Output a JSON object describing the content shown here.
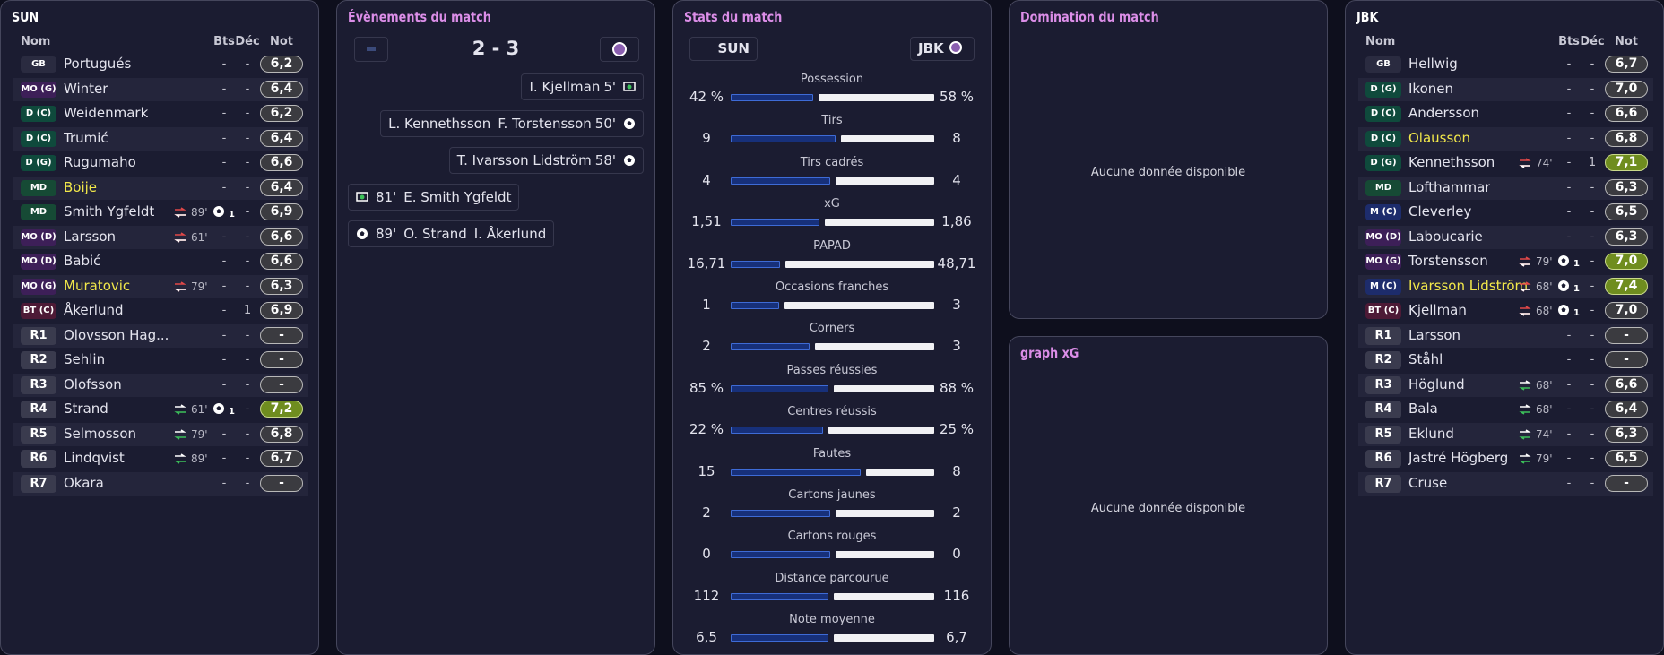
{
  "home_panel": {
    "title": "SUN",
    "headers": [
      "Nom",
      "Bts",
      "Déc",
      "Not"
    ],
    "players": [
      {
        "pos": "GB",
        "name": "Portugués",
        "goals": "-",
        "assists": "-",
        "rating": "6,2"
      },
      {
        "pos": "MO (G)",
        "name": "Winter",
        "goals": "-",
        "assists": "-",
        "rating": "6,4"
      },
      {
        "pos": "D (C)",
        "name": "Weidenmark",
        "goals": "-",
        "assists": "-",
        "rating": "6,2"
      },
      {
        "pos": "D (C)",
        "name": "Trumić",
        "goals": "-",
        "assists": "-",
        "rating": "6,4"
      },
      {
        "pos": "D (G)",
        "name": "Rugumaho",
        "goals": "-",
        "assists": "-",
        "rating": "6,6"
      },
      {
        "pos": "MD",
        "name": "Boije",
        "highlight": true,
        "goals": "-",
        "assists": "-",
        "rating": "6,4"
      },
      {
        "pos": "MD",
        "name": "Smith Ygfeldt",
        "sub": "out",
        "sub_minute": "89'",
        "goals": "1",
        "assists": "-",
        "rating": "6,9"
      },
      {
        "pos": "MO (D)",
        "name": "Larsson",
        "sub": "out",
        "sub_minute": "61'",
        "goals": "-",
        "assists": "-",
        "rating": "6,6"
      },
      {
        "pos": "MO (D)",
        "name": "Babić",
        "goals": "-",
        "assists": "-",
        "rating": "6,6"
      },
      {
        "pos": "MO (G)",
        "name": "Muratovic",
        "highlight": true,
        "sub": "out",
        "sub_minute": "79'",
        "goals": "-",
        "assists": "-",
        "rating": "6,3"
      },
      {
        "pos": "BT (C)",
        "name": "Åkerlund",
        "goals": "-",
        "assists": "1",
        "rating": "6,9"
      },
      {
        "pos": "R1",
        "name": "Olovsson Hag...",
        "goals": "-",
        "assists": "-",
        "rating": "-"
      },
      {
        "pos": "R2",
        "name": "Sehlin",
        "goals": "-",
        "assists": "-",
        "rating": "-"
      },
      {
        "pos": "R3",
        "name": "Olofsson",
        "goals": "-",
        "assists": "-",
        "rating": "-"
      },
      {
        "pos": "R4",
        "name": "Strand",
        "sub": "in",
        "sub_minute": "61'",
        "goals": "1",
        "assists": "-",
        "rating": "7,2",
        "rating_highlight": true
      },
      {
        "pos": "R5",
        "name": "Selmosson",
        "sub": "in",
        "sub_minute": "79'",
        "goals": "-",
        "assists": "-",
        "rating": "6,8"
      },
      {
        "pos": "R6",
        "name": "Lindqvist",
        "sub": "in",
        "sub_minute": "89'",
        "goals": "-",
        "assists": "-",
        "rating": "6,7"
      },
      {
        "pos": "R7",
        "name": "Okara",
        "goals": "-",
        "assists": "-",
        "rating": "-"
      }
    ]
  },
  "events_panel": {
    "title": "Évènements du match",
    "score": "2 - 3",
    "events": [
      {
        "side": "away",
        "names": [
          "I. Kjellman"
        ],
        "minute": "5'",
        "icon": "penalty"
      },
      {
        "side": "away",
        "names": [
          "L. Kennethsson",
          "F. Torstensson"
        ],
        "minute": "50'",
        "icon": "ball"
      },
      {
        "side": "away",
        "names": [
          "T. Ivarsson Lidström"
        ],
        "minute": "58'",
        "icon": "ball"
      },
      {
        "side": "home",
        "names": [
          "E. Smith Ygfeldt"
        ],
        "minute": "81'",
        "icon": "penalty"
      },
      {
        "side": "home",
        "names": [
          "O. Strand",
          "I. Åkerlund"
        ],
        "minute": "89'",
        "icon": "ball"
      }
    ]
  },
  "stats_panel": {
    "title": "Stats du match",
    "home_team": "SUN",
    "away_team": "JBK",
    "stats": [
      {
        "name": "Possession",
        "home": {
          "value": 42,
          "label": "42 %"
        },
        "away": {
          "value": 58,
          "label": "58 %"
        }
      },
      {
        "name": "Tirs",
        "home": 9,
        "away": 8
      },
      {
        "name": "Tirs cadrés",
        "home": 4,
        "away": 4
      },
      {
        "name": "xG",
        "home": {
          "value": 1.51,
          "label": "1,51"
        },
        "away": {
          "value": 1.86,
          "label": "1,86"
        }
      },
      {
        "name": "PAPAD",
        "home": {
          "value": 16.71,
          "label": "16,71"
        },
        "away": {
          "value": 48.71,
          "label": "48,71"
        }
      },
      {
        "name": "Occasions franches",
        "home": 1,
        "away": 3
      },
      {
        "name": "Corners",
        "home": 2,
        "away": 3
      },
      {
        "name": "Passes réussies",
        "home": {
          "value": 85,
          "label": "85 %"
        },
        "away": {
          "value": 88,
          "label": "88 %"
        }
      },
      {
        "name": "Centres réussis",
        "home": {
          "value": 22,
          "label": "22 %"
        },
        "away": {
          "value": 25,
          "label": "25 %"
        }
      },
      {
        "name": "Fautes",
        "home": 15,
        "away": 8
      },
      {
        "name": "Cartons jaunes",
        "home": 2,
        "away": 2
      },
      {
        "name": "Cartons rouges",
        "home": 0,
        "away": 0
      },
      {
        "name": "Distance parcourue",
        "home": 112,
        "away": 116
      },
      {
        "name": "Note moyenne",
        "home": {
          "value": 6.5,
          "label": "6,5"
        },
        "away": {
          "value": 6.7,
          "label": "6,7"
        }
      }
    ]
  },
  "domination_panel": {
    "title": "Domination du match",
    "empty_text": "Aucune donnée disponible"
  },
  "xg_panel": {
    "title": "graph xG",
    "empty_text": "Aucune donnée disponible"
  },
  "away_panel": {
    "title": "JBK",
    "headers": [
      "Nom",
      "Bts",
      "Déc",
      "Not"
    ],
    "players": [
      {
        "pos": "GB",
        "name": "Hellwig",
        "goals": "-",
        "assists": "-",
        "rating": "6,7"
      },
      {
        "pos": "D (G)",
        "name": "Ikonen",
        "goals": "-",
        "assists": "-",
        "rating": "7,0"
      },
      {
        "pos": "D (C)",
        "name": "Andersson",
        "goals": "-",
        "assists": "-",
        "rating": "6,6"
      },
      {
        "pos": "D (C)",
        "name": "Olausson",
        "highlight": true,
        "goals": "-",
        "assists": "-",
        "rating": "6,8"
      },
      {
        "pos": "D (G)",
        "name": "Kennethsson",
        "sub": "out",
        "sub_minute": "74'",
        "goals": "-",
        "assists": "1",
        "rating": "7,1",
        "rating_highlight": true
      },
      {
        "pos": "MD",
        "name": "Lofthammar",
        "goals": "-",
        "assists": "-",
        "rating": "6,3"
      },
      {
        "pos": "M (C)",
        "name": "Cleverley",
        "goals": "-",
        "assists": "-",
        "rating": "6,5"
      },
      {
        "pos": "MO (D)",
        "name": "Laboucarie",
        "goals": "-",
        "assists": "-",
        "rating": "6,3"
      },
      {
        "pos": "MO (G)",
        "name": "Torstensson",
        "sub": "out",
        "sub_minute": "79'",
        "goals": "1",
        "assists": "-",
        "rating": "7,0",
        "rating_highlight": true
      },
      {
        "pos": "M (C)",
        "name": "Ivarsson Lidström",
        "highlight": true,
        "sub": "out",
        "sub_minute": "68'",
        "goals": "1",
        "assists": "-",
        "rating": "7,4",
        "rating_highlight": true
      },
      {
        "pos": "BT (C)",
        "name": "Kjellman",
        "sub": "out",
        "sub_minute": "68'",
        "goals": "1",
        "assists": "-",
        "rating": "7,0"
      },
      {
        "pos": "R1",
        "name": "Larsson",
        "goals": "-",
        "assists": "-",
        "rating": "-"
      },
      {
        "pos": "R2",
        "name": "Ståhl",
        "goals": "-",
        "assists": "-",
        "rating": "-"
      },
      {
        "pos": "R3",
        "name": "Höglund",
        "sub": "in",
        "sub_minute": "68'",
        "goals": "-",
        "assists": "-",
        "rating": "6,6"
      },
      {
        "pos": "R4",
        "name": "Bala",
        "sub": "in",
        "sub_minute": "68'",
        "goals": "-",
        "assists": "-",
        "rating": "6,4"
      },
      {
        "pos": "R5",
        "name": "Eklund",
        "sub": "in",
        "sub_minute": "74'",
        "goals": "-",
        "assists": "-",
        "rating": "6,3"
      },
      {
        "pos": "R6",
        "name": "Jastré Högberg",
        "sub": "in",
        "sub_minute": "79'",
        "goals": "-",
        "assists": "-",
        "rating": "6,5"
      },
      {
        "pos": "R7",
        "name": "Cruse",
        "goals": "-",
        "assists": "-",
        "rating": "-"
      }
    ]
  }
}
